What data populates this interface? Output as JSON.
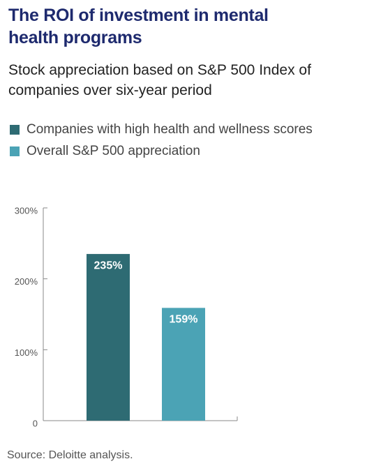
{
  "chart_data": {
    "type": "bar",
    "title": "The ROI of investment in mental health programs",
    "subtitle": "Stock appreciation based on S&P 500 Index of companies over six-year period",
    "categories": [
      null
    ],
    "series": [
      {
        "name": "Companies with high health and wellness scores",
        "color": "#2e6b73",
        "values": [
          235
        ],
        "value_labels": [
          "235%"
        ]
      },
      {
        "name": "Overall S&P 500 appreciation",
        "color": "#4ba3b5",
        "values": [
          159
        ],
        "value_labels": [
          "159%"
        ]
      }
    ],
    "ylim": [
      0,
      300
    ],
    "yticks": [
      0,
      {
        "value": 100,
        "label": "100%"
      },
      {
        "value": 200,
        "label": "200%"
      },
      {
        "value": 300,
        "label": "300%"
      }
    ],
    "legend": "top-left",
    "source": "Source: Deloitte analysis."
  }
}
